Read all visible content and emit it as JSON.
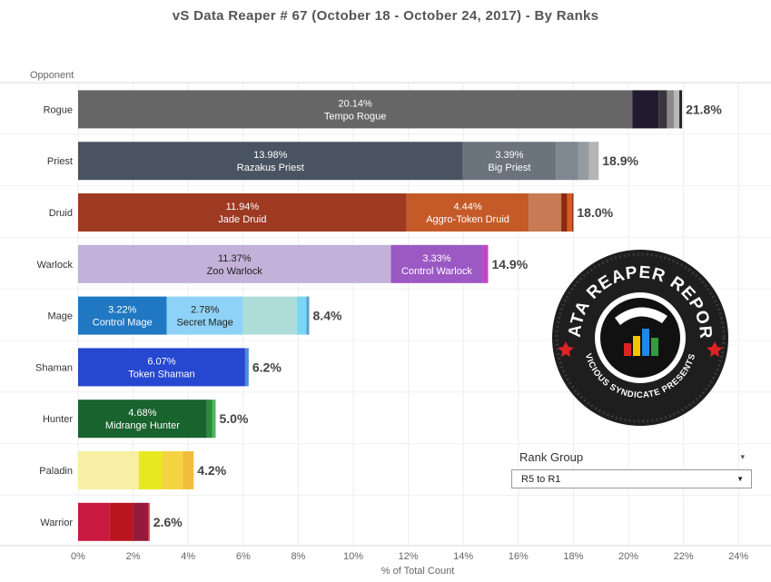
{
  "title": "vS Data Reaper #  67 (October 18 - October 24, 2017) - By Ranks",
  "chart_data": {
    "type": "bar",
    "orientation": "horizontal",
    "stacked": true,
    "title": "vS Data Reaper #  67 (October 18 - October 24, 2017) - By Ranks",
    "ylabel": "Opponent",
    "xlabel": "% of Total Count",
    "xlim": [
      0,
      24
    ],
    "xticks": [
      "0%",
      "2%",
      "4%",
      "6%",
      "8%",
      "10%",
      "12%",
      "14%",
      "16%",
      "18%",
      "20%",
      "22%",
      "24%"
    ],
    "categories": [
      "Rogue",
      "Priest",
      "Druid",
      "Warlock",
      "Mage",
      "Shaman",
      "Hunter",
      "Paladin",
      "Warrior"
    ],
    "totals": [
      "21.8%",
      "18.9%",
      "18.0%",
      "14.9%",
      "8.4%",
      "6.2%",
      "5.0%",
      "4.2%",
      "2.6%"
    ],
    "bars": [
      {
        "class": "Rogue",
        "segments": [
          {
            "value": 20.14,
            "label": "20.14%",
            "name": "Tempo Rogue",
            "color": "#666666"
          },
          {
            "value": 0.96,
            "color": "#221a2e"
          },
          {
            "value": 0.3,
            "color": "#3a3640"
          },
          {
            "value": 0.25,
            "color": "#8a8a8a"
          },
          {
            "value": 0.2,
            "color": "#b8b8b8"
          },
          {
            "value": 0.1,
            "color": "#222222"
          }
        ]
      },
      {
        "class": "Priest",
        "segments": [
          {
            "value": 13.98,
            "label": "13.98%",
            "name": "Razakus Priest",
            "color": "#4a5361"
          },
          {
            "value": 3.39,
            "label": "3.39%",
            "name": "Big Priest",
            "color": "#6b737c"
          },
          {
            "value": 0.8,
            "color": "#7f8890"
          },
          {
            "value": 0.4,
            "color": "#959ba1"
          },
          {
            "value": 0.35,
            "color": "#b5b5b5"
          }
        ]
      },
      {
        "class": "Druid",
        "segments": [
          {
            "value": 11.94,
            "label": "11.94%",
            "name": "Jade Druid",
            "color": "#9e3a22"
          },
          {
            "value": 4.44,
            "label": "4.44%",
            "name": "Aggro-Token Druid",
            "color": "#c55a28"
          },
          {
            "value": 1.18,
            "color": "#c87a55"
          },
          {
            "value": 0.22,
            "color": "#8a2a10"
          },
          {
            "value": 0.18,
            "color": "#d95a22"
          },
          {
            "value": 0.04,
            "color": "#6a1a08"
          }
        ]
      },
      {
        "class": "Warlock",
        "segments": [
          {
            "value": 11.37,
            "label": "11.37%",
            "name": "Zoo Warlock",
            "color": "#c3b1d9"
          },
          {
            "value": 3.33,
            "label": "3.33%",
            "name": "Control Warlock",
            "color": "#9b59c4"
          },
          {
            "value": 0.2,
            "color": "#c243c9"
          }
        ]
      },
      {
        "class": "Mage",
        "segments": [
          {
            "value": 3.22,
            "label": "3.22%",
            "name": "Control Mage",
            "color": "#1f78c1"
          },
          {
            "value": 2.78,
            "label": "2.78%",
            "name": "Secret Mage",
            "color": "#8ed3f7"
          },
          {
            "value": 1.95,
            "color": "#aedcd8"
          },
          {
            "value": 0.35,
            "color": "#7ad6f2"
          },
          {
            "value": 0.1,
            "color": "#5a9fd0"
          }
        ]
      },
      {
        "class": "Shaman",
        "segments": [
          {
            "value": 6.07,
            "label": "6.07%",
            "name": "Token Shaman",
            "color": "#2647cf"
          },
          {
            "value": 0.13,
            "color": "#4b8ad8"
          }
        ]
      },
      {
        "class": "Hunter",
        "segments": [
          {
            "value": 4.68,
            "label": "4.68%",
            "name": "Midrange Hunter",
            "color": "#18632e"
          },
          {
            "value": 0.2,
            "color": "#2a8a3c"
          },
          {
            "value": 0.12,
            "color": "#4cb85e"
          }
        ]
      },
      {
        "class": "Paladin",
        "segments": [
          {
            "value": 2.2,
            "color": "#f7efa3"
          },
          {
            "value": 0.85,
            "color": "#e8e820"
          },
          {
            "value": 0.75,
            "color": "#f5d442"
          },
          {
            "value": 0.4,
            "color": "#f3bd3b"
          }
        ]
      },
      {
        "class": "Warrior",
        "segments": [
          {
            "value": 1.15,
            "color": "#c8193e"
          },
          {
            "value": 0.85,
            "color": "#b81520"
          },
          {
            "value": 0.55,
            "color": "#951b3c"
          },
          {
            "value": 0.05,
            "color": "#d0303a"
          }
        ]
      }
    ]
  },
  "filter": {
    "label": "Rank Group",
    "value": "R5 to R1",
    "label_caret": "▾",
    "select_caret": "▼"
  },
  "logo": {
    "top_text": "DATA REAPER REPORT",
    "bottom_text": "VICIOUS SYNDICATE PRESENTS"
  }
}
